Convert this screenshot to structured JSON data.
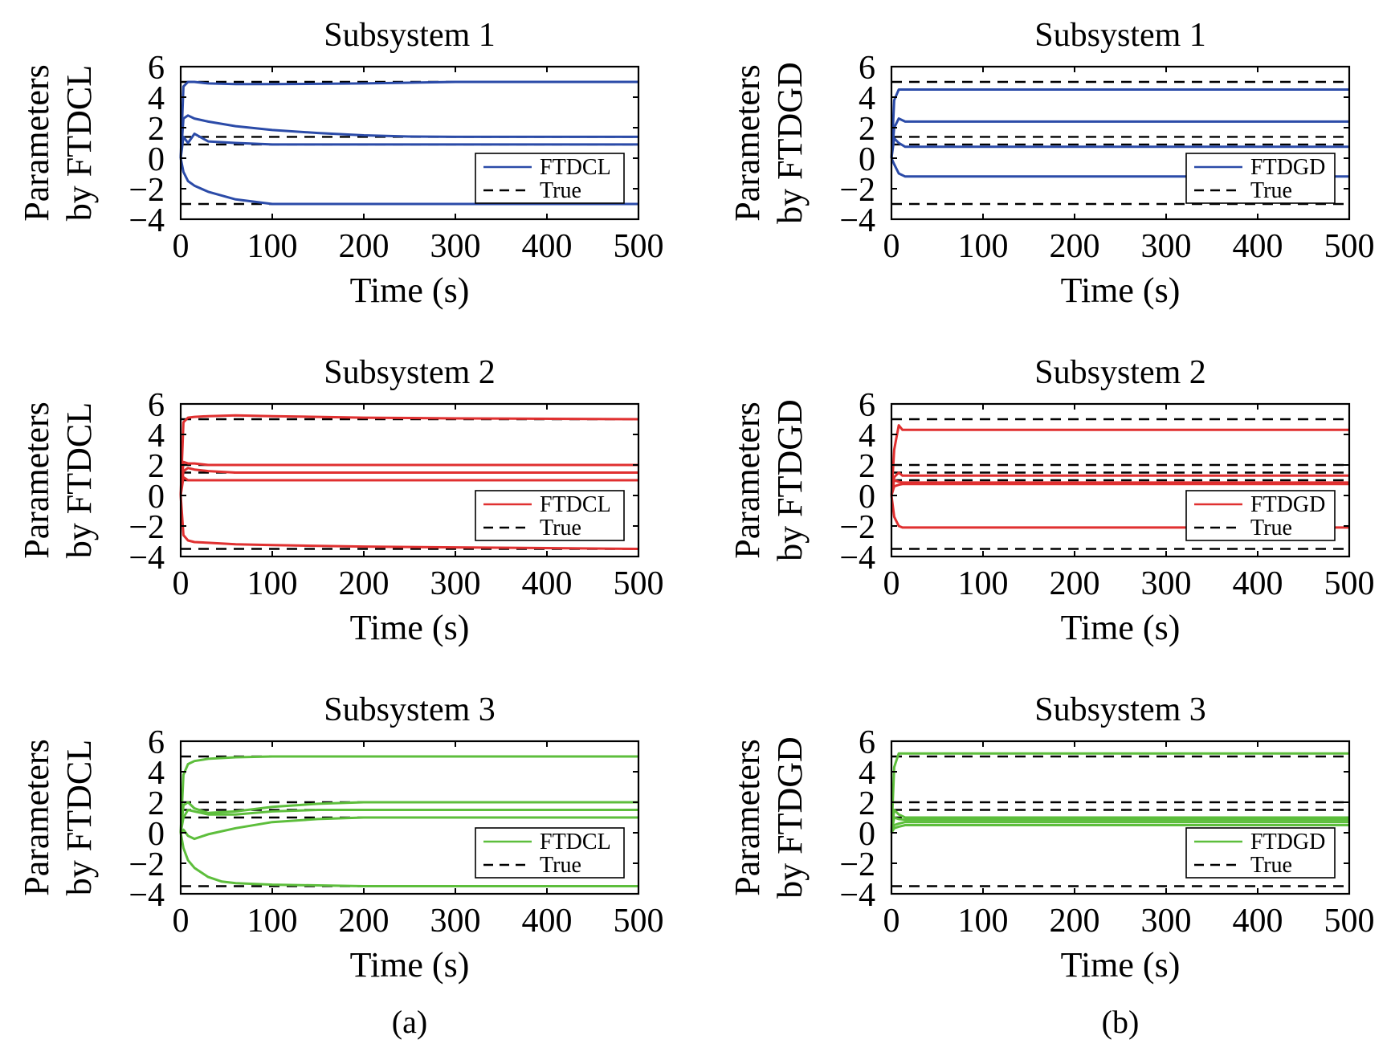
{
  "figure": {
    "captions": [
      "(a)",
      "(b)"
    ]
  },
  "chart_data": [
    {
      "type": "line",
      "column": 0,
      "row": 0,
      "title": "Subsystem 1",
      "xlabel": "Time (s)",
      "ylabel": [
        "Parameters",
        "by FTDCL"
      ],
      "xlim": [
        0,
        500
      ],
      "ylim": [
        -4,
        6
      ],
      "xticks": [
        0,
        100,
        200,
        300,
        400,
        500
      ],
      "yticks": [
        -4,
        -2,
        0,
        2,
        4,
        6
      ],
      "ytick_labels": [
        "−4",
        "−2",
        "0",
        "2",
        "4",
        "6"
      ],
      "series_color": "#2B4BA8",
      "legend_position": "lower-right",
      "legend": [
        {
          "label": "FTDCL",
          "style": "solid"
        },
        {
          "label": "True",
          "style": "dashed"
        }
      ],
      "true_values": [
        5,
        1.4,
        0.9,
        -3
      ],
      "estimates": [
        {
          "x": [
            0,
            3,
            8,
            15,
            30,
            60,
            100,
            200,
            300,
            500
          ],
          "y": [
            0,
            4.7,
            5.0,
            5.0,
            4.9,
            4.85,
            4.85,
            4.9,
            5.0,
            5.0
          ]
        },
        {
          "x": [
            0,
            3,
            8,
            15,
            30,
            60,
            100,
            150,
            200,
            250,
            300,
            500
          ],
          "y": [
            0,
            2.6,
            2.8,
            2.6,
            2.4,
            2.1,
            1.85,
            1.65,
            1.5,
            1.42,
            1.4,
            1.4
          ]
        },
        {
          "x": [
            0,
            3,
            8,
            15,
            30,
            60,
            100,
            200,
            300,
            500
          ],
          "y": [
            0,
            1.4,
            1.0,
            1.6,
            1.1,
            1.0,
            0.9,
            0.9,
            0.9,
            0.9
          ]
        },
        {
          "x": [
            0,
            3,
            8,
            15,
            30,
            60,
            100,
            200,
            300,
            500
          ],
          "y": [
            0,
            -0.9,
            -1.5,
            -1.8,
            -2.2,
            -2.7,
            -3.0,
            -3.0,
            -3.0,
            -3.0
          ]
        }
      ]
    },
    {
      "type": "line",
      "column": 1,
      "row": 0,
      "title": "Subsystem 1",
      "xlabel": "Time (s)",
      "ylabel": [
        "Parameters",
        "by FTDGD"
      ],
      "xlim": [
        0,
        500
      ],
      "ylim": [
        -4,
        6
      ],
      "xticks": [
        0,
        100,
        200,
        300,
        400,
        500
      ],
      "yticks": [
        -4,
        -2,
        0,
        2,
        4,
        6
      ],
      "ytick_labels": [
        "−4",
        "−2",
        "0",
        "2",
        "4",
        "6"
      ],
      "series_color": "#2B4BA8",
      "legend_position": "lower-right",
      "legend": [
        {
          "label": "FTDGD",
          "style": "solid"
        },
        {
          "label": "True",
          "style": "dashed"
        }
      ],
      "true_values": [
        5,
        1.4,
        0.9,
        -3
      ],
      "estimates": [
        {
          "x": [
            0,
            3,
            8,
            15,
            30,
            100,
            500
          ],
          "y": [
            0,
            3.8,
            4.5,
            4.5,
            4.5,
            4.5,
            4.5
          ]
        },
        {
          "x": [
            0,
            3,
            8,
            15,
            30,
            100,
            500
          ],
          "y": [
            0,
            2.0,
            2.6,
            2.4,
            2.4,
            2.4,
            2.4
          ]
        },
        {
          "x": [
            0,
            3,
            8,
            15,
            30,
            100,
            500
          ],
          "y": [
            0,
            1.3,
            1.0,
            0.75,
            0.75,
            0.75,
            0.75
          ]
        },
        {
          "x": [
            0,
            3,
            8,
            15,
            30,
            100,
            500
          ],
          "y": [
            0,
            -0.4,
            -1.0,
            -1.2,
            -1.2,
            -1.2,
            -1.2
          ]
        }
      ]
    },
    {
      "type": "line",
      "column": 0,
      "row": 1,
      "title": "Subsystem 2",
      "xlabel": "Time (s)",
      "ylabel": [
        "Parameters",
        "by FTDCL"
      ],
      "xlim": [
        0,
        500
      ],
      "ylim": [
        -4,
        6
      ],
      "xticks": [
        0,
        100,
        200,
        300,
        400,
        500
      ],
      "yticks": [
        -4,
        -2,
        0,
        2,
        4,
        6
      ],
      "ytick_labels": [
        "−4",
        "−2",
        "0",
        "2",
        "4",
        "6"
      ],
      "series_color": "#E03030",
      "legend_position": "lower-right",
      "legend": [
        {
          "label": "FTDCL",
          "style": "solid"
        },
        {
          "label": "True",
          "style": "dashed"
        }
      ],
      "true_values": [
        5,
        2,
        1.5,
        1,
        -3.5
      ],
      "estimates": [
        {
          "x": [
            0,
            3,
            8,
            15,
            30,
            60,
            100,
            200,
            300,
            500
          ],
          "y": [
            0,
            4.8,
            5.1,
            5.15,
            5.2,
            5.25,
            5.2,
            5.1,
            5.05,
            5.0
          ]
        },
        {
          "x": [
            0,
            3,
            8,
            15,
            30,
            60,
            100,
            200,
            500
          ],
          "y": [
            0,
            2.2,
            2.1,
            2.1,
            2.0,
            2.0,
            2.0,
            2.0,
            2.0
          ]
        },
        {
          "x": [
            0,
            3,
            8,
            15,
            30,
            60,
            100,
            200,
            500
          ],
          "y": [
            0,
            1.6,
            1.8,
            1.7,
            1.6,
            1.5,
            1.5,
            1.5,
            1.5
          ]
        },
        {
          "x": [
            0,
            3,
            8,
            15,
            30,
            60,
            100,
            200,
            500
          ],
          "y": [
            0,
            1.2,
            1.0,
            1.0,
            1.0,
            1.0,
            1.0,
            1.0,
            1.0
          ]
        },
        {
          "x": [
            0,
            3,
            8,
            15,
            30,
            60,
            100,
            200,
            300,
            400,
            500
          ],
          "y": [
            0,
            -2.6,
            -2.95,
            -3.05,
            -3.1,
            -3.2,
            -3.25,
            -3.35,
            -3.4,
            -3.45,
            -3.5
          ]
        }
      ]
    },
    {
      "type": "line",
      "column": 1,
      "row": 1,
      "title": "Subsystem 2",
      "xlabel": "Time (s)",
      "ylabel": [
        "Parameters",
        "by FTDGD"
      ],
      "xlim": [
        0,
        500
      ],
      "ylim": [
        -4,
        6
      ],
      "xticks": [
        0,
        100,
        200,
        300,
        400,
        500
      ],
      "yticks": [
        -4,
        -2,
        0,
        2,
        4,
        6
      ],
      "ytick_labels": [
        "−4",
        "−2",
        "0",
        "2",
        "4",
        "6"
      ],
      "series_color": "#E03030",
      "legend_position": "lower-right",
      "legend": [
        {
          "label": "FTDGD",
          "style": "solid"
        },
        {
          "label": "True",
          "style": "dashed"
        }
      ],
      "true_values": [
        5,
        2,
        1.5,
        1,
        -3.5
      ],
      "estimates": [
        {
          "x": [
            0,
            3,
            8,
            12,
            20,
            100,
            500
          ],
          "y": [
            0,
            3.0,
            4.6,
            4.3,
            4.3,
            4.3,
            4.3
          ]
        },
        {
          "x": [
            0,
            3,
            8,
            12,
            20,
            100,
            500
          ],
          "y": [
            0,
            1.2,
            1.5,
            1.3,
            1.3,
            1.3,
            1.3
          ]
        },
        {
          "x": [
            0,
            3,
            8,
            12,
            20,
            100,
            500
          ],
          "y": [
            0,
            1.0,
            0.9,
            0.85,
            0.85,
            0.85,
            0.85
          ]
        },
        {
          "x": [
            0,
            3,
            8,
            12,
            20,
            100,
            500
          ],
          "y": [
            0,
            0.6,
            0.7,
            0.75,
            0.75,
            0.75,
            0.75
          ]
        },
        {
          "x": [
            0,
            3,
            8,
            12,
            20,
            100,
            500
          ],
          "y": [
            0,
            -1.4,
            -2.0,
            -2.1,
            -2.1,
            -2.1,
            -2.1
          ]
        }
      ]
    },
    {
      "type": "line",
      "column": 0,
      "row": 2,
      "title": "Subsystem 3",
      "xlabel": "Time (s)",
      "ylabel": [
        "Parameters",
        "by FTDCL"
      ],
      "xlim": [
        0,
        500
      ],
      "ylim": [
        -4,
        6
      ],
      "xticks": [
        0,
        100,
        200,
        300,
        400,
        500
      ],
      "yticks": [
        -4,
        -2,
        0,
        2,
        4,
        6
      ],
      "ytick_labels": [
        "−4",
        "−2",
        "0",
        "2",
        "4",
        "6"
      ],
      "series_color": "#5DBE3C",
      "legend_position": "lower-right",
      "legend": [
        {
          "label": "FTDCL",
          "style": "solid"
        },
        {
          "label": "True",
          "style": "dashed"
        }
      ],
      "true_values": [
        5,
        2,
        1.5,
        1,
        -3.5
      ],
      "estimates": [
        {
          "x": [
            0,
            3,
            8,
            15,
            30,
            60,
            100,
            200,
            500
          ],
          "y": [
            0,
            3.8,
            4.5,
            4.7,
            4.85,
            4.95,
            5.0,
            5.0,
            5.0
          ]
        },
        {
          "x": [
            0,
            3,
            8,
            15,
            30,
            60,
            100,
            150,
            200,
            500
          ],
          "y": [
            0,
            1.8,
            2.0,
            1.6,
            1.3,
            1.4,
            1.7,
            1.9,
            2.0,
            2.0
          ]
        },
        {
          "x": [
            0,
            3,
            8,
            15,
            30,
            60,
            100,
            150,
            200,
            500
          ],
          "y": [
            0,
            1.0,
            1.5,
            1.4,
            1.2,
            1.2,
            1.4,
            1.5,
            1.5,
            1.5
          ]
        },
        {
          "x": [
            0,
            3,
            8,
            15,
            30,
            60,
            100,
            150,
            200,
            500
          ],
          "y": [
            0,
            0.2,
            -0.2,
            -0.4,
            -0.1,
            0.3,
            0.7,
            0.9,
            1.0,
            1.0
          ]
        },
        {
          "x": [
            0,
            3,
            8,
            15,
            30,
            45,
            60,
            100,
            200,
            500
          ],
          "y": [
            0,
            -1.0,
            -1.8,
            -2.3,
            -2.9,
            -3.2,
            -3.3,
            -3.4,
            -3.5,
            -3.5
          ]
        }
      ]
    },
    {
      "type": "line",
      "column": 1,
      "row": 2,
      "title": "Subsystem 3",
      "xlabel": "Time (s)",
      "ylabel": [
        "Parameters",
        "by FTDGD"
      ],
      "xlim": [
        0,
        500
      ],
      "ylim": [
        -4,
        6
      ],
      "xticks": [
        0,
        100,
        200,
        300,
        400,
        500
      ],
      "yticks": [
        -4,
        -2,
        0,
        2,
        4,
        6
      ],
      "ytick_labels": [
        "−4",
        "−2",
        "0",
        "2",
        "4",
        "6"
      ],
      "series_color": "#5DBE3C",
      "legend_position": "lower-right",
      "legend": [
        {
          "label": "FTDGD",
          "style": "solid"
        },
        {
          "label": "True",
          "style": "dashed"
        }
      ],
      "true_values": [
        5,
        2,
        1.5,
        1,
        -3.5
      ],
      "estimates": [
        {
          "x": [
            0,
            3,
            8,
            15,
            30,
            100,
            500
          ],
          "y": [
            0,
            4.3,
            5.2,
            5.2,
            5.2,
            5.2,
            5.2
          ]
        },
        {
          "x": [
            0,
            3,
            8,
            15,
            30,
            100,
            500
          ],
          "y": [
            0,
            1.5,
            1.2,
            1.0,
            1.0,
            1.0,
            1.0
          ]
        },
        {
          "x": [
            0,
            3,
            8,
            15,
            30,
            100,
            500
          ],
          "y": [
            0,
            1.0,
            0.9,
            0.85,
            0.85,
            0.85,
            0.85
          ]
        },
        {
          "x": [
            0,
            3,
            8,
            15,
            30,
            100,
            500
          ],
          "y": [
            0,
            0.5,
            0.6,
            0.7,
            0.7,
            0.7,
            0.7
          ]
        },
        {
          "x": [
            0,
            3,
            8,
            15,
            30,
            100,
            500
          ],
          "y": [
            0,
            0.3,
            0.4,
            0.5,
            0.5,
            0.5,
            0.5
          ]
        }
      ]
    }
  ]
}
